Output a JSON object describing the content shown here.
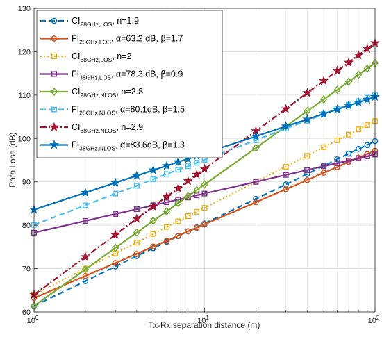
{
  "chart_data": {
    "type": "line",
    "xlabel": "Tx-Rx separation distance (m)",
    "ylabel": "Path Loss (dB)",
    "xscale": "log",
    "xlim": [
      1,
      100
    ],
    "ylim": [
      60,
      130
    ],
    "x_tick_labels": [
      "10",
      "10",
      "10"
    ],
    "x_tick_exponents": [
      "0",
      "1",
      "2"
    ],
    "x_tick_values": [
      1,
      10,
      100
    ],
    "y_ticks": [
      60,
      70,
      80,
      90,
      100,
      110,
      120,
      130
    ],
    "grid": true,
    "legend_position": "top-left",
    "series": [
      {
        "name": "CI28GHz,LOS, n=1.9",
        "legend": {
          "base": "CI",
          "sub": "28GHz,LOS",
          "rest": ", n=1.9"
        },
        "color": "#0072bd",
        "dash": "8,5",
        "marker": "circle",
        "width": 2.2,
        "x": [
          1,
          2,
          3,
          4,
          5,
          6,
          7,
          8,
          9,
          10,
          20,
          30,
          40,
          50,
          60,
          70,
          80,
          90,
          100
        ],
        "y": [
          61.4,
          67.1,
          70.5,
          72.9,
          74.7,
          76.2,
          77.5,
          78.6,
          79.5,
          80.4,
          86.1,
          89.4,
          91.8,
          93.7,
          95.2,
          96.5,
          97.6,
          98.5,
          99.4
        ]
      },
      {
        "name": "FI28GHz,LOS, α=63.2 dB, β=1.7",
        "legend": {
          "base": "FI",
          "sub": "28GHz,LOS",
          "rest": ", α=63.2 dB, β=1.7"
        },
        "color": "#d95319",
        "dash": "",
        "marker": "circle",
        "width": 2.2,
        "x": [
          1,
          2,
          3,
          4,
          5,
          6,
          7,
          8,
          9,
          10,
          20,
          30,
          40,
          50,
          60,
          70,
          80,
          90,
          100
        ],
        "y": [
          63.2,
          68.3,
          71.3,
          73.4,
          75.1,
          76.4,
          77.6,
          78.6,
          79.4,
          80.2,
          85.3,
          88.3,
          90.4,
          92.1,
          93.4,
          94.6,
          95.6,
          96.4,
          97.2
        ]
      },
      {
        "name": "CI38GHz,LOS, n=2",
        "legend": {
          "base": "CI",
          "sub": "38GHz,LOS",
          "rest": ", n=2"
        },
        "color": "#edb120",
        "dash": "2,3",
        "marker": "square",
        "width": 2.2,
        "x": [
          1,
          2,
          3,
          4,
          5,
          6,
          7,
          8,
          9,
          10,
          20,
          30,
          40,
          50,
          60,
          70,
          80,
          90,
          100
        ],
        "y": [
          64,
          70,
          73.5,
          76,
          78,
          79.6,
          80.9,
          82.1,
          83.1,
          84,
          90,
          93.5,
          96,
          98,
          99.6,
          100.9,
          102.1,
          103.1,
          104
        ]
      },
      {
        "name": "FI38GHz,LOS, α=78.3 dB, β=0.9",
        "legend": {
          "base": "FI",
          "sub": "38GHz,LOS",
          "rest": ", α=78.3 dB, β=0.9"
        },
        "color": "#7e2f8e",
        "dash": "",
        "marker": "square",
        "width": 2.2,
        "x": [
          1,
          2,
          3,
          4,
          5,
          6,
          7,
          8,
          9,
          10,
          20,
          30,
          40,
          50,
          60,
          70,
          80,
          90,
          100
        ],
        "y": [
          78.3,
          81,
          82.6,
          83.7,
          84.6,
          85.3,
          85.9,
          86.4,
          86.9,
          87.3,
          90,
          91.6,
          92.7,
          93.6,
          94.3,
          94.9,
          95.4,
          95.9,
          96.3
        ]
      },
      {
        "name": "CI28GHz,NLOS, n=2.8",
        "legend": {
          "base": "CI",
          "sub": "28GHz,NLOS",
          "rest": ", n=2.8"
        },
        "color": "#77ac30",
        "dash": "",
        "marker": "diamond",
        "width": 2.2,
        "x": [
          1,
          2,
          3,
          4,
          5,
          6,
          7,
          8,
          9,
          10,
          20,
          30,
          40,
          50,
          60,
          70,
          80,
          90,
          100
        ],
        "y": [
          61.4,
          69.8,
          74.8,
          78.3,
          81,
          83.2,
          85.1,
          86.7,
          88.1,
          89.4,
          97.8,
          102.8,
          106.3,
          109,
          111.2,
          113.1,
          114.7,
          116.1,
          117.4
        ]
      },
      {
        "name": "FI28GHz,NLOS, α=80.1dB, β=1.5",
        "legend": {
          "base": "FI",
          "sub": "28GHz,NLOS",
          "rest": ", α=80.1dB, β=1.5"
        },
        "color": "#4dbeee",
        "dash": "8,5",
        "marker": "square",
        "width": 2.2,
        "x": [
          1,
          2,
          3,
          4,
          5,
          6,
          7,
          8,
          9,
          10,
          20,
          30,
          40,
          50,
          60,
          70,
          80,
          90,
          100
        ],
        "y": [
          80.1,
          84.6,
          87.3,
          89.1,
          90.6,
          91.8,
          92.8,
          93.6,
          94.4,
          95.1,
          99.6,
          102.3,
          104.1,
          105.6,
          106.8,
          107.8,
          108.6,
          109.4,
          110.1
        ]
      },
      {
        "name": "CI38GHz,NLOS, n=2.9",
        "legend": {
          "base": "CI",
          "sub": "38GHz,NLOS",
          "rest": ", n=2.9"
        },
        "color": "#a2142f",
        "dash": "9,3,2,3",
        "marker": "star",
        "width": 2.2,
        "x": [
          1,
          2,
          3,
          4,
          5,
          6,
          7,
          8,
          9,
          10,
          20,
          30,
          40,
          50,
          60,
          70,
          80,
          90,
          100
        ],
        "y": [
          64,
          72.7,
          77.8,
          81.5,
          84.3,
          86.6,
          88.5,
          90.2,
          91.7,
          93,
          101.7,
          106.8,
          110.5,
          113.3,
          115.6,
          117.5,
          119.2,
          120.7,
          122
        ]
      },
      {
        "name": "FI38GHz,NLOS, α=83.6dB, β=1.3",
        "legend": {
          "base": "FI",
          "sub": "38GHz,NLOS",
          "rest": ", α=83.6dB, β=1.3"
        },
        "color": "#0072bd",
        "dash": "",
        "marker": "star",
        "width": 2.2,
        "x": [
          1,
          2,
          3,
          4,
          5,
          6,
          7,
          8,
          9,
          10,
          20,
          30,
          40,
          50,
          60,
          70,
          80,
          90,
          100
        ],
        "y": [
          83.6,
          87.5,
          89.8,
          91.4,
          92.7,
          93.7,
          94.6,
          95.3,
          96,
          96.6,
          100.5,
          102.8,
          104.4,
          105.7,
          106.7,
          107.6,
          108.3,
          109,
          109.6
        ]
      }
    ]
  }
}
